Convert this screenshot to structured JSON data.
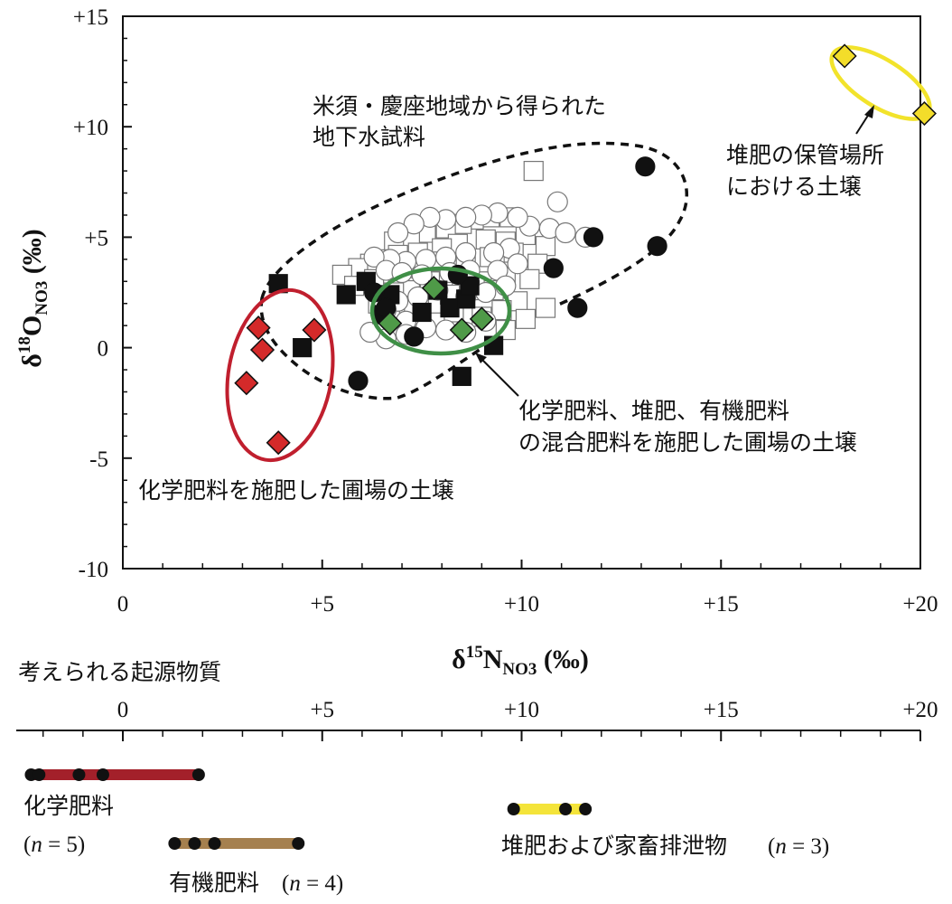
{
  "chart_data": {
    "type": "scatter",
    "xlabel": {
      "base": "δ",
      "sup": "15",
      "main": "N",
      "sub": "NO3",
      "unit": " (‰)"
    },
    "ylabel": {
      "base": "δ",
      "sup": "18",
      "main": "O",
      "sub": "NO3",
      "unit": " (‰)"
    },
    "xlim": [
      0,
      20
    ],
    "ylim": [
      -10,
      15
    ],
    "x_ticks": [
      {
        "value": 0,
        "label": "0"
      },
      {
        "value": 5,
        "label": "+5"
      },
      {
        "value": 10,
        "label": "+10"
      },
      {
        "value": 15,
        "label": "+15"
      },
      {
        "value": 20,
        "label": "+20"
      }
    ],
    "y_ticks": [
      {
        "value": -10,
        "label": "-10"
      },
      {
        "value": -5,
        "label": "-5"
      },
      {
        "value": 0,
        "label": "0"
      },
      {
        "value": 5,
        "label": "+5"
      },
      {
        "value": 10,
        "label": "+10"
      },
      {
        "value": 15,
        "label": "+15"
      }
    ],
    "groundwater_open_squares": [
      [
        10.3,
        8
      ],
      [
        9.7,
        5.9
      ],
      [
        9.2,
        5.9
      ],
      [
        8.8,
        5.8
      ],
      [
        8.5,
        5.6
      ],
      [
        8.1,
        5.4
      ],
      [
        7.6,
        5.2
      ],
      [
        7.2,
        5
      ],
      [
        6.8,
        4.8
      ],
      [
        10.1,
        5.1
      ],
      [
        10.6,
        4.6
      ],
      [
        9.6,
        4.8
      ],
      [
        9.1,
        4.9
      ],
      [
        8.4,
        4.7
      ],
      [
        8,
        4.5
      ],
      [
        7.4,
        4.3
      ],
      [
        6.9,
        4.2
      ],
      [
        6.5,
        4
      ],
      [
        6.2,
        3.8
      ],
      [
        5.9,
        3.6
      ],
      [
        5.5,
        3.3
      ],
      [
        6.3,
        3.1
      ],
      [
        6.9,
        3.2
      ],
      [
        7.3,
        3.6
      ],
      [
        7.9,
        3.9
      ],
      [
        8.6,
        4
      ],
      [
        9.2,
        4.1
      ],
      [
        9.8,
        4.3
      ],
      [
        10.4,
        3.8
      ],
      [
        9.6,
        3.2
      ],
      [
        9,
        3
      ],
      [
        8.5,
        3.2
      ],
      [
        7.7,
        3
      ],
      [
        7.2,
        2.6
      ],
      [
        6.8,
        2.5
      ],
      [
        9.3,
        2.6
      ],
      [
        9.9,
        2.1
      ],
      [
        10.2,
        3.1
      ],
      [
        9.5,
        1.7
      ],
      [
        9,
        1.4
      ],
      [
        10.1,
        1.3
      ],
      [
        6.4,
        2
      ],
      [
        6.7,
        1.5
      ],
      [
        7.3,
        1.9
      ],
      [
        7.9,
        2
      ],
      [
        8.2,
        2.4
      ],
      [
        8.7,
        2.6
      ],
      [
        8.3,
        1.6
      ],
      [
        9.6,
        0.8
      ],
      [
        10.6,
        1.8
      ],
      [
        5.8,
        2.8
      ]
    ],
    "groundwater_open_circles": [
      [
        10.9,
        6.6
      ],
      [
        10.7,
        5.4
      ],
      [
        11.1,
        5.2
      ],
      [
        10.2,
        5.5
      ],
      [
        9.9,
        5.9
      ],
      [
        9.4,
        6.1
      ],
      [
        9,
        6
      ],
      [
        8.6,
        5.9
      ],
      [
        8.1,
        5.8
      ],
      [
        7.7,
        5.9
      ],
      [
        7.3,
        5.6
      ],
      [
        6.9,
        5.2
      ],
      [
        9.7,
        4.5
      ],
      [
        9.3,
        4.3
      ],
      [
        8.6,
        4.3
      ],
      [
        8.1,
        4.1
      ],
      [
        7.6,
        4
      ],
      [
        7.1,
        3.9
      ],
      [
        6.7,
        4
      ],
      [
        6.3,
        4.1
      ],
      [
        6.6,
        3.5
      ],
      [
        7,
        3.4
      ],
      [
        7.5,
        3.3
      ],
      [
        8.2,
        3.4
      ],
      [
        8.7,
        3.5
      ],
      [
        9.4,
        3.5
      ],
      [
        9.9,
        3.8
      ],
      [
        9.6,
        2.8
      ],
      [
        9.1,
        2.5
      ],
      [
        8.6,
        2.3
      ],
      [
        7.9,
        2.6
      ],
      [
        7.4,
        2.3
      ],
      [
        6.9,
        2.1
      ],
      [
        6.6,
        1.7
      ],
      [
        7.1,
        1.2
      ],
      [
        7.6,
        0.9
      ],
      [
        8.1,
        0.8
      ],
      [
        8.6,
        0.7
      ],
      [
        9.1,
        1.2
      ],
      [
        6.6,
        0.4
      ],
      [
        7.1,
        0.6
      ],
      [
        6.2,
        0.7
      ],
      [
        11.6,
        5
      ]
    ],
    "groundwater_filled_squares": [
      [
        3.9,
        2.9
      ],
      [
        5.6,
        2.4
      ],
      [
        6.1,
        3
      ],
      [
        6.7,
        2.4
      ],
      [
        7.5,
        1.6
      ],
      [
        8.2,
        1.8
      ],
      [
        8.6,
        2.2
      ],
      [
        8.5,
        -1.3
      ],
      [
        9.3,
        0.1
      ],
      [
        4.5,
        0
      ],
      [
        6.5,
        1.5
      ],
      [
        7.9,
        2.6
      ],
      [
        8.7,
        2.8
      ]
    ],
    "groundwater_filled_circles": [
      [
        13.1,
        8.2
      ],
      [
        13.4,
        4.6
      ],
      [
        11.8,
        5
      ],
      [
        11.4,
        1.8
      ],
      [
        10.8,
        3.6
      ],
      [
        5.9,
        -1.5
      ],
      [
        7.3,
        0.5
      ],
      [
        6.6,
        1.8
      ],
      [
        6.3,
        2.5
      ],
      [
        8.4,
        3.3
      ]
    ],
    "chemical_fertilizer_soil": [
      [
        3.1,
        -1.6
      ],
      [
        3.4,
        0.9
      ],
      [
        3.5,
        -0.1
      ],
      [
        3.9,
        -4.3
      ],
      [
        4.8,
        0.8
      ]
    ],
    "mixed_fertilizer_soil": [
      [
        6.7,
        1.1
      ],
      [
        7.8,
        2.7
      ],
      [
        8.5,
        0.8
      ],
      [
        9,
        1.3
      ]
    ],
    "compost_storage_soil": [
      [
        18.1,
        13.2
      ],
      [
        20.1,
        10.6
      ]
    ],
    "annotations": {
      "groundwater": [
        "米須・慶座地域から得られた",
        "地下水試料"
      ],
      "compost_soil": [
        "堆肥の保管場所",
        "における土壌"
      ],
      "chemical_soil": "化学肥料を施肥した圃場の土壌",
      "mixed_soil": [
        "化学肥料、堆肥、有機肥料",
        "の混合肥料を施肥した圃場の土壌"
      ]
    },
    "sources": {
      "title": "考えられる起源物質",
      "x_ticks": [
        {
          "value": 0,
          "label": "0"
        },
        {
          "value": 5,
          "label": "+5"
        },
        {
          "value": 10,
          "label": "+10"
        },
        {
          "value": 15,
          "label": "+15"
        },
        {
          "value": 20,
          "label": "+20"
        }
      ],
      "bars": [
        {
          "name": "化学肥料",
          "n_label": "(n = 5)",
          "color": "#a3202a",
          "values": [
            -2.3,
            -2.1,
            -1.1,
            -0.5,
            1.9
          ]
        },
        {
          "name": "有機肥料",
          "n_label": "(n = 4)",
          "color": "#a5804f",
          "values": [
            1.3,
            1.8,
            2.3,
            4.4
          ]
        },
        {
          "name": "堆肥および家畜排泄物",
          "n_label": "(n = 3)",
          "color": "#f4e43a",
          "values": [
            9.8,
            11.1,
            11.6
          ]
        }
      ]
    },
    "colors": {
      "chemical": "#d42a2a",
      "chemical_ellipse": "#c01f2e",
      "mixed": "#4f9a48",
      "mixed_ellipse": "#3f8f46",
      "compost": "#f3dd2a",
      "compost_ellipse": "#f2e32b"
    }
  }
}
